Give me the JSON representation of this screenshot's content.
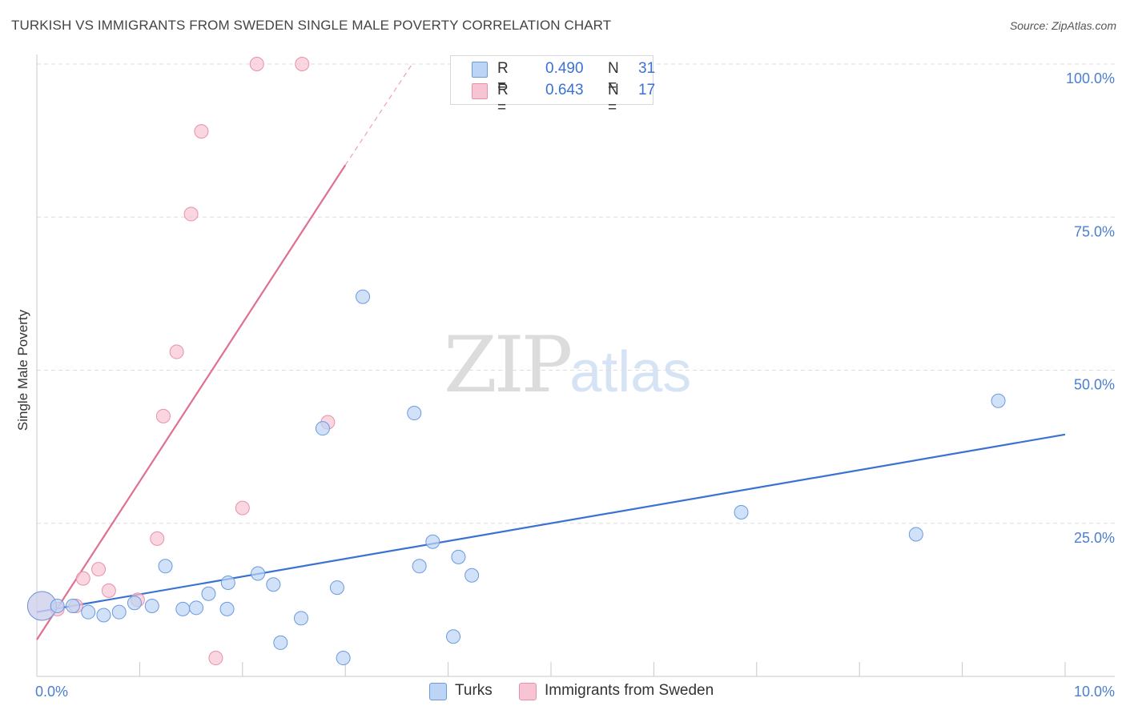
{
  "title": "TURKISH VS IMMIGRANTS FROM SWEDEN SINGLE MALE POVERTY CORRELATION CHART",
  "source": "Source: ZipAtlas.com",
  "watermark": {
    "zip": "ZIP",
    "atlas": "atlas"
  },
  "colors": {
    "blue": "#3a72d4",
    "blue_fill": "#bcd4f5",
    "pink": "#e0708f",
    "pink_fill": "#f7c4d3",
    "grid": "#dddddd"
  },
  "legend_top": {
    "rows": [
      {
        "r_label": "R =",
        "r_value": "0.490",
        "n_label": "N =",
        "n_value": "31",
        "series": "Turks"
      },
      {
        "r_label": "R =",
        "r_value": "0.643",
        "n_label": "N =",
        "n_value": "17",
        "series": "Immigrants from Sweden"
      }
    ]
  },
  "legend_bottom": [
    {
      "label": "Turks"
    },
    {
      "label": "Immigrants from Sweden"
    }
  ],
  "chart_data": {
    "type": "scatter",
    "title": "TURKISH VS IMMIGRANTS FROM SWEDEN SINGLE MALE POVERTY CORRELATION CHART",
    "xlabel": "",
    "ylabel": "Single Male Poverty",
    "xlim": [
      0,
      10
    ],
    "ylim": [
      0,
      100
    ],
    "x_tick_labels": [
      "0.0%",
      "10.0%"
    ],
    "y_ticks": [
      25,
      50,
      75,
      100
    ],
    "y_tick_labels": [
      "25.0%",
      "50.0%",
      "75.0%",
      "100.0%"
    ],
    "grid": true,
    "series": [
      {
        "name": "Turks",
        "color": "#3a72d4",
        "points": [
          {
            "x": 0.05,
            "y": 11.5,
            "big": true
          },
          {
            "x": 0.2,
            "y": 11.5
          },
          {
            "x": 0.35,
            "y": 11.5
          },
          {
            "x": 0.5,
            "y": 10.5
          },
          {
            "x": 0.65,
            "y": 10.0
          },
          {
            "x": 0.8,
            "y": 10.5
          },
          {
            "x": 0.95,
            "y": 12.0
          },
          {
            "x": 1.12,
            "y": 11.5
          },
          {
            "x": 1.25,
            "y": 18.0
          },
          {
            "x": 1.42,
            "y": 11.0
          },
          {
            "x": 1.55,
            "y": 11.2
          },
          {
            "x": 1.67,
            "y": 13.5
          },
          {
            "x": 1.85,
            "y": 11.0
          },
          {
            "x": 1.86,
            "y": 15.3
          },
          {
            "x": 2.15,
            "y": 16.8
          },
          {
            "x": 2.3,
            "y": 15.0
          },
          {
            "x": 2.37,
            "y": 5.5
          },
          {
            "x": 2.57,
            "y": 9.5
          },
          {
            "x": 2.78,
            "y": 40.5
          },
          {
            "x": 2.92,
            "y": 14.5
          },
          {
            "x": 2.98,
            "y": 3.0
          },
          {
            "x": 3.17,
            "y": 62.0
          },
          {
            "x": 3.67,
            "y": 43.0
          },
          {
            "x": 3.72,
            "y": 18.0
          },
          {
            "x": 3.85,
            "y": 22.0
          },
          {
            "x": 4.05,
            "y": 6.5
          },
          {
            "x": 4.1,
            "y": 19.5
          },
          {
            "x": 4.23,
            "y": 16.5
          },
          {
            "x": 6.85,
            "y": 26.8
          },
          {
            "x": 8.55,
            "y": 23.2
          },
          {
            "x": 9.35,
            "y": 45.0
          }
        ],
        "trendline": {
          "x": [
            0,
            10
          ],
          "y": [
            10.5,
            39.5
          ]
        }
      },
      {
        "name": "Immigrants from Sweden",
        "color": "#e0708f",
        "points": [
          {
            "x": 0.05,
            "y": 11.5,
            "big": true
          },
          {
            "x": 0.2,
            "y": 11.0
          },
          {
            "x": 0.38,
            "y": 11.5
          },
          {
            "x": 0.45,
            "y": 16.0
          },
          {
            "x": 0.6,
            "y": 17.5
          },
          {
            "x": 0.7,
            "y": 14.0
          },
          {
            "x": 0.98,
            "y": 12.5
          },
          {
            "x": 1.17,
            "y": 22.5
          },
          {
            "x": 1.23,
            "y": 42.5
          },
          {
            "x": 1.36,
            "y": 53.0
          },
          {
            "x": 1.5,
            "y": 75.5
          },
          {
            "x": 1.6,
            "y": 89.0
          },
          {
            "x": 1.74,
            "y": 3.0
          },
          {
            "x": 2.0,
            "y": 27.5
          },
          {
            "x": 2.14,
            "y": 100.0
          },
          {
            "x": 2.58,
            "y": 100.0
          },
          {
            "x": 2.83,
            "y": 41.5
          }
        ],
        "trendline": {
          "x": [
            0,
            3.0
          ],
          "y": [
            6.0,
            83.5
          ]
        },
        "trendline_extension": {
          "x": [
            3.0,
            3.65
          ],
          "y": [
            83.5,
            100.0
          ]
        }
      }
    ]
  }
}
